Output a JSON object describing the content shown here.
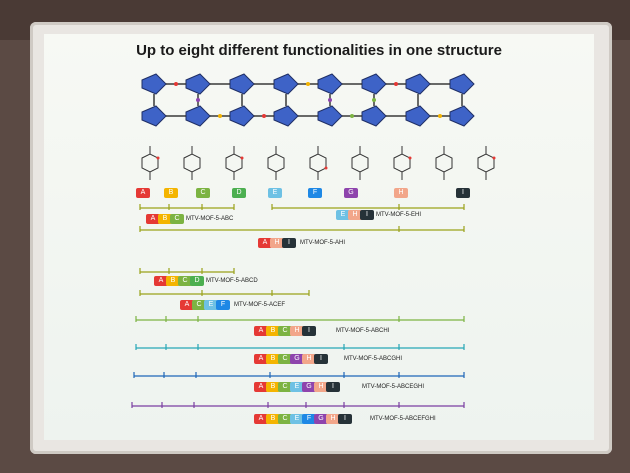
{
  "slide": {
    "title": "Up to eight different functionalities in one structure"
  },
  "linkers": [
    {
      "letter": "A",
      "color": "#e53935"
    },
    {
      "letter": "B",
      "color": "#f4b400"
    },
    {
      "letter": "C",
      "color": "#7cb342"
    },
    {
      "letter": "D",
      "color": "#4caf50"
    },
    {
      "letter": "E",
      "color": "#6ec1e4"
    },
    {
      "letter": "F",
      "color": "#1e88e5"
    },
    {
      "letter": "G",
      "color": "#8e44ad"
    },
    {
      "letter": "H",
      "color": "#f2a68a"
    },
    {
      "letter": "I",
      "color": "#263238"
    }
  ],
  "mofs": [
    {
      "name": "MTV-MOF-5-ABC",
      "letters": [
        "A",
        "B",
        "C"
      ]
    },
    {
      "name": "MTV-MOF-5-EHI",
      "letters": [
        "E",
        "H",
        "I"
      ]
    },
    {
      "name": "MTV-MOF-5-AHI",
      "letters": [
        "A",
        "H",
        "I"
      ]
    },
    {
      "name": "MTV-MOF-5-ABCD",
      "letters": [
        "A",
        "B",
        "C",
        "D"
      ]
    },
    {
      "name": "MTV-MOF-5-ACEF",
      "letters": [
        "A",
        "C",
        "E",
        "F"
      ]
    },
    {
      "name": "MTV-MOF-5-ABCHI",
      "letters": [
        "A",
        "B",
        "C",
        "H",
        "I"
      ]
    },
    {
      "name": "MTV-MOF-5-ABCGHI",
      "letters": [
        "A",
        "B",
        "C",
        "G",
        "H",
        "I"
      ]
    },
    {
      "name": "MTV-MOF-5-ABCEGHI",
      "letters": [
        "A",
        "B",
        "C",
        "E",
        "G",
        "H",
        "I"
      ]
    },
    {
      "name": "MTV-MOF-5-ABCEFGHI",
      "letters": [
        "A",
        "B",
        "C",
        "E",
        "F",
        "G",
        "H",
        "I"
      ]
    }
  ]
}
